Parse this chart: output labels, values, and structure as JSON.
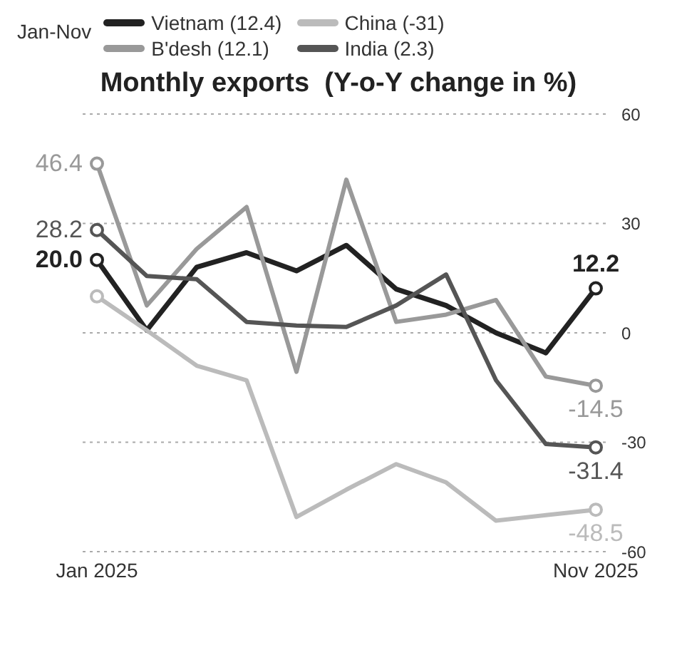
{
  "chart_data": {
    "type": "line",
    "title": "Monthly exports  (Y-o-Y change in %)",
    "legend_title": "Jan-Nov",
    "categories": [
      "Jan 2025",
      null,
      null,
      null,
      null,
      null,
      null,
      null,
      null,
      null,
      "Nov 2025"
    ],
    "series": [
      {
        "name": "Vietnam (12.4)",
        "color": "#222222",
        "values": [
          20.0,
          0.7,
          18,
          22,
          17,
          24,
          12,
          7.5,
          0,
          -5.5,
          12.2
        ],
        "value_labels": [
          "20.0",
          null,
          null,
          null,
          null,
          null,
          null,
          null,
          null,
          null,
          "12.2"
        ]
      },
      {
        "name": "China (-31)",
        "color": "#bbbbbb",
        "values": [
          10,
          0.7,
          -9,
          -13,
          -50.5,
          -43,
          -36,
          -41,
          -51.5,
          -50,
          -48.5
        ],
        "value_labels": [
          null,
          null,
          null,
          null,
          null,
          null,
          null,
          null,
          null,
          null,
          "-48.5"
        ]
      },
      {
        "name": "B'desh (12.1)",
        "color": "#999999",
        "values": [
          46.4,
          7.5,
          23,
          34.5,
          -10.7,
          42,
          3,
          5,
          9,
          -12,
          -14.5
        ],
        "value_labels": [
          "46.4",
          null,
          null,
          null,
          null,
          null,
          null,
          null,
          null,
          null,
          "-14.5"
        ]
      },
      {
        "name": "India (2.3)",
        "color": "#555555",
        "values": [
          28.2,
          15.6,
          14.7,
          3,
          2,
          1.6,
          7.5,
          16,
          -13,
          -30.5,
          -31.4
        ],
        "value_labels": [
          "28.2",
          null,
          null,
          null,
          null,
          null,
          null,
          null,
          null,
          null,
          "-31.4"
        ]
      }
    ],
    "ylim": [
      -60,
      60
    ],
    "yticks": [
      60,
      30,
      0,
      -30,
      -60
    ],
    "grid": "y",
    "legend": "top left",
    "line_style": "solid"
  }
}
